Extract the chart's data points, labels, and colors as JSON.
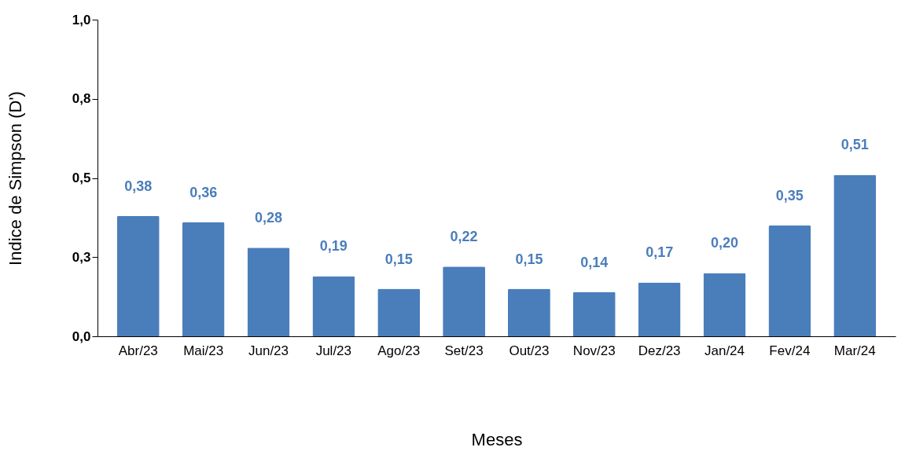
{
  "chart_data": {
    "type": "bar",
    "xlabel": "Meses",
    "ylabel": "Indice de Simpson (D')",
    "categories": [
      "Abr/23",
      "Mai/23",
      "Jun/23",
      "Jul/23",
      "Ago/23",
      "Set/23",
      "Out/23",
      "Nov/23",
      "Dez/23",
      "Jan/24",
      "Fev/24",
      "Mar/24"
    ],
    "values": [
      0.38,
      0.36,
      0.28,
      0.19,
      0.15,
      0.22,
      0.15,
      0.14,
      0.17,
      0.2,
      0.35,
      0.51
    ],
    "value_labels": [
      "0,38",
      "0,36",
      "0,28",
      "0,19",
      "0,15",
      "0,22",
      "0,15",
      "0,14",
      "0,17",
      "0,20",
      "0,35",
      "0,51"
    ],
    "color": "#4a7ebb",
    "ylim": [
      0,
      1
    ],
    "yticks": [
      {
        "value": 0,
        "label": "0,0"
      },
      {
        "value": 0.25,
        "label": "0,3"
      },
      {
        "value": 0.5,
        "label": "0,5"
      },
      {
        "value": 0.75,
        "label": "0,8"
      },
      {
        "value": 1,
        "label": "1,0"
      }
    ],
    "grid": false
  }
}
